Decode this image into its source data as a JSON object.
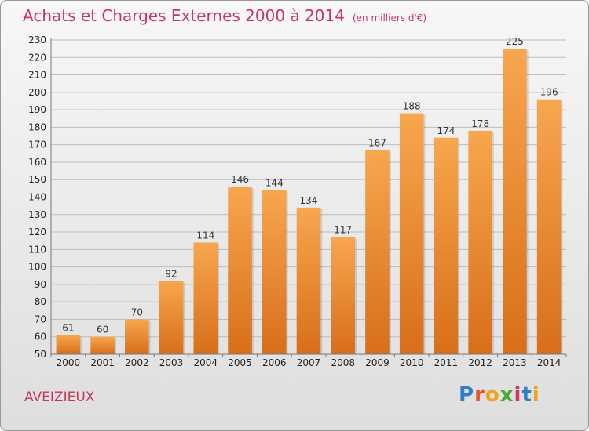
{
  "header": {
    "title": "Achats et Charges Externes 2000 à 2014",
    "unit": "(en milliers d'€)"
  },
  "footer": {
    "commune": "AVEIZIEUX",
    "logo": {
      "letters": [
        "P",
        "r",
        "o",
        "x",
        "i",
        "t",
        "i"
      ],
      "colors": [
        "#2e7fc7",
        "#e8542a",
        "#f0a21a",
        "#4aa832",
        "#d8345f",
        "#2e7fc7",
        "#f0a21a"
      ]
    }
  },
  "colors": {
    "bar_light": "#f7a74e",
    "bar_dark": "#d86e1a",
    "title": "#c8365a",
    "grid": "#bdbdbd"
  },
  "chart_data": {
    "type": "bar",
    "title": "Achats et Charges Externes 2000 à 2014",
    "categories": [
      "2000",
      "2001",
      "2002",
      "2003",
      "2004",
      "2005",
      "2006",
      "2007",
      "2008",
      "2009",
      "2010",
      "2011",
      "2012",
      "2013",
      "2014"
    ],
    "values": [
      61,
      60,
      70,
      92,
      114,
      146,
      144,
      134,
      117,
      167,
      188,
      174,
      178,
      225,
      196
    ],
    "xlabel": "",
    "ylabel": "",
    "ylim": [
      50,
      230
    ],
    "yticks": [
      50,
      60,
      70,
      80,
      90,
      100,
      110,
      120,
      130,
      140,
      150,
      160,
      170,
      180,
      190,
      200,
      210,
      220,
      230
    ],
    "grid": true,
    "legend": "none"
  }
}
